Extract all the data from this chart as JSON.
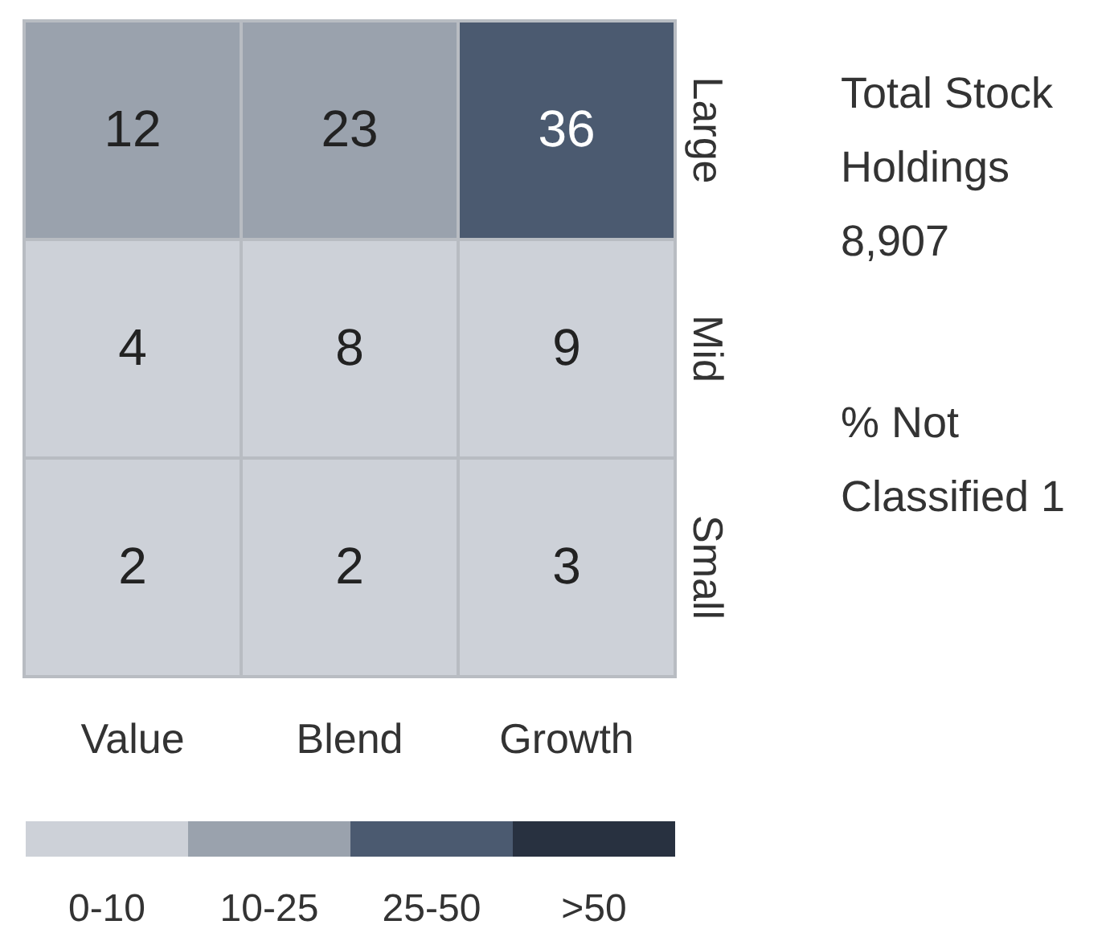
{
  "chart_data": {
    "type": "heatmap",
    "categories": [
      "Value",
      "Blend",
      "Growth"
    ],
    "y_categories": [
      "Large",
      "Mid",
      "Small"
    ],
    "cells": [
      [
        12,
        23,
        36
      ],
      [
        4,
        8,
        9
      ],
      [
        2,
        2,
        3
      ]
    ],
    "data_labels": true,
    "colors": [
      "#9aa2ad",
      "#9aa2ad",
      "#4b5a70",
      "#cdd1d8",
      "#cdd1d8",
      "#cdd1d8",
      "#cdd1d8",
      "#cdd1d8",
      "#cdd1d8"
    ],
    "annotations": [
      "Total Stock Holdings 8,907",
      "% Not Classified 1",
      "0-10",
      "10-25",
      "25-50",
      ">50"
    ]
  }
}
